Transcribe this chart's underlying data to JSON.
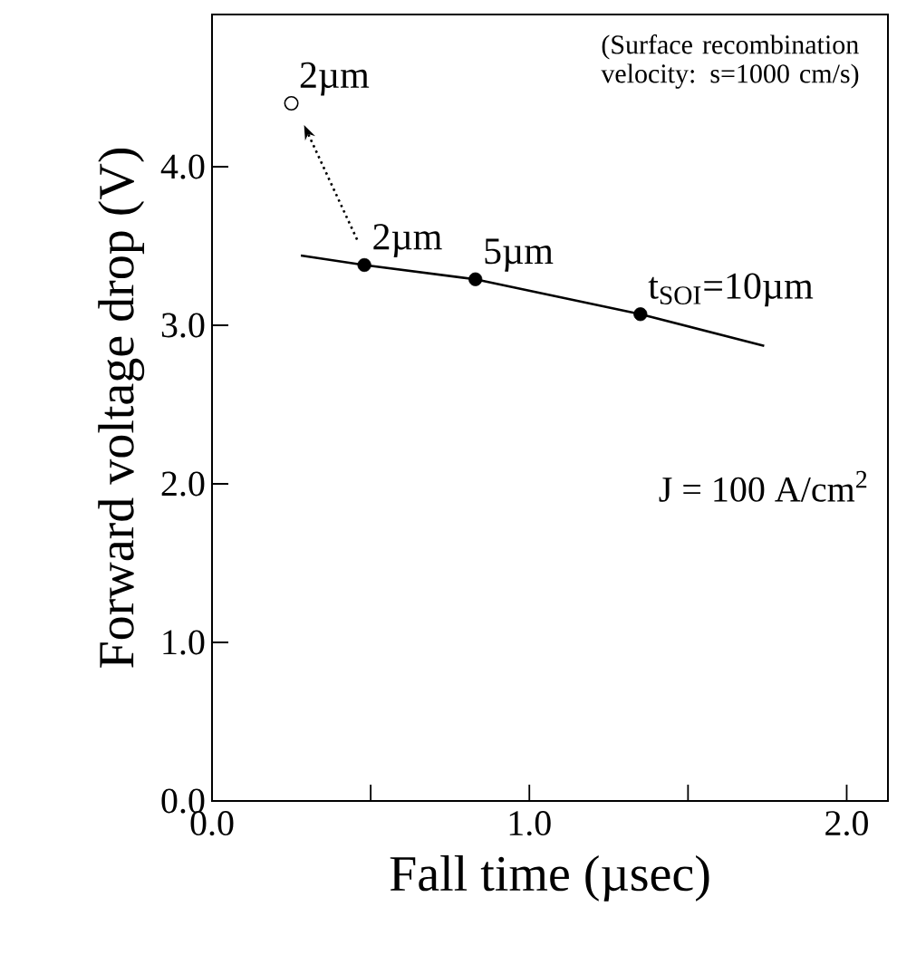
{
  "chart_data": {
    "type": "line",
    "xlabel": "Fall time (µsec)",
    "ylabel": "Forward voltage drop (V)",
    "xlim": [
      0,
      2.13
    ],
    "ylim": [
      0,
      4.96
    ],
    "xticks": [
      {
        "value": 0,
        "label": "0.0"
      },
      {
        "value": 0.5,
        "label": null
      },
      {
        "value": 1,
        "label": "1.0"
      },
      {
        "value": 1.5,
        "label": null
      },
      {
        "value": 2,
        "label": "2.0"
      }
    ],
    "yticks": [
      {
        "value": 0,
        "label": "0.0"
      },
      {
        "value": 1,
        "label": "1.0"
      },
      {
        "value": 2,
        "label": "2.0"
      },
      {
        "value": 3,
        "label": "3.0"
      },
      {
        "value": 4,
        "label": "4.0"
      }
    ],
    "series": [
      {
        "color": "#000000",
        "marker": "none",
        "line_style": "solid",
        "x": [
          0.28,
          0.48,
          0.83,
          1.35,
          1.74
        ],
        "values": [
          3.44,
          3.38,
          3.29,
          3.07,
          2.87
        ]
      },
      {
        "type": "scatter",
        "color": "#000000",
        "marker": "circle",
        "x": [
          0.48,
          0.83,
          1.35
        ],
        "values": [
          3.38,
          3.29,
          3.07
        ]
      },
      {
        "type": "scatter",
        "color": "#000000",
        "marker": "circle",
        "x": [
          0.25
        ],
        "values": [
          4.4
        ]
      }
    ],
    "annotations": [
      {
        "text": "2µm",
        "x": 0.48,
        "y": 3.38
      },
      {
        "text": "5µm",
        "x": 0.83,
        "y": 3.29
      },
      {
        "text": "t$_{SOI}$=10µm",
        "x": 1.35,
        "y": 3.07
      },
      {
        "text": "2µm",
        "x": 0.25,
        "y": 4.4
      },
      "(Surface recombination velocity: s=1000 cm/s)",
      "J = 100 A/cm$^{2}$"
    ]
  }
}
